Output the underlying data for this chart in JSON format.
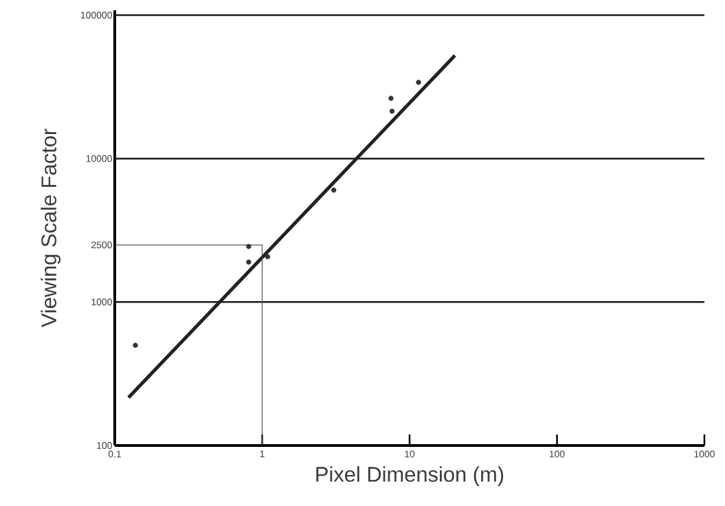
{
  "chart_data": {
    "type": "scatter",
    "xlabel": "Pixel Dimension (m)",
    "ylabel": "Viewing Scale Factor",
    "log": "xy",
    "xlim": [
      0.1,
      1000
    ],
    "ylim": [
      100,
      108000
    ],
    "xticks": [
      0.1,
      1,
      10,
      100,
      1000
    ],
    "yticks": [
      100,
      1000,
      2500,
      10000,
      100000
    ],
    "grid": false,
    "ref_lines": [
      {
        "axis": "y",
        "value": 1000,
        "color": "#1a1a1a"
      },
      {
        "axis": "y",
        "value": 10000,
        "color": "#1a1a1a"
      },
      {
        "axis": "y",
        "value": 100000,
        "color": "#1a1a1a"
      }
    ],
    "marker": "circle",
    "series": [
      {
        "color": "#333333",
        "x": [
          0.138,
          0.81,
          0.81,
          1.09,
          3.06,
          7.48,
          7.6,
          11.5
        ],
        "values": [
          500,
          2440,
          1900,
          2070,
          6030,
          26300,
          21400,
          34000
        ]
      },
      {
        "type": "line",
        "marker": "none",
        "line_style": "solid",
        "color": "#222222",
        "x": [
          0.124,
          20.3
        ],
        "values": [
          216,
          52300
        ]
      },
      {
        "type": "line",
        "marker": "none",
        "line_style": "solid",
        "color": "#555555",
        "x": [
          0.1,
          1,
          1
        ],
        "values": [
          2500,
          2500,
          100
        ]
      }
    ]
  }
}
